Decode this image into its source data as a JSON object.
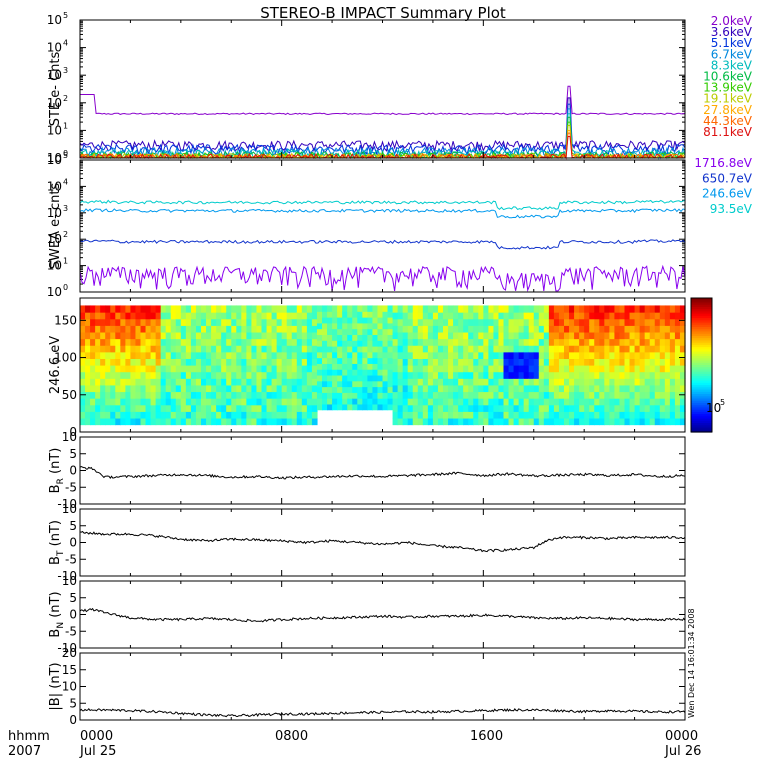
{
  "title": "STEREO-B IMPACT Summary Plot",
  "footer": {
    "hhmm_label": "hhmm",
    "year_label": "2007",
    "x_ticks": [
      "0000",
      "0800",
      "1600",
      "0000"
    ],
    "date_labels": [
      "Jul 25",
      "Jul 26"
    ],
    "stamp": "Wen Dec 14 16:01:34 2008"
  },
  "chart_data": [
    {
      "type": "line",
      "panel": "ste",
      "ylabel": "STE e- Cnts",
      "yscale": "log",
      "ylim": [
        1,
        100000
      ],
      "y_ticks": [
        "10^0",
        "10^1",
        "10^2",
        "10^3",
        "10^4",
        "10^5"
      ],
      "x_range_hours": [
        0,
        24
      ],
      "series": [
        {
          "name": "2.0keV",
          "color": "#8800cc",
          "baseline": 40,
          "spike": 400
        },
        {
          "name": "3.6keV",
          "color": "#3300bb",
          "baseline": 3.0,
          "spike": 150
        },
        {
          "name": "5.1keV",
          "color": "#0033dd",
          "baseline": 2.2,
          "spike": 90
        },
        {
          "name": "6.7keV",
          "color": "#0088dd",
          "baseline": 1.7,
          "spike": 60
        },
        {
          "name": "8.3keV",
          "color": "#00bbbb",
          "baseline": 1.4,
          "spike": 40
        },
        {
          "name": "10.6keV",
          "color": "#00bb44",
          "baseline": 1.2,
          "spike": 30
        },
        {
          "name": "13.9keV",
          "color": "#33cc00",
          "baseline": 1.1,
          "spike": 20
        },
        {
          "name": "19.1keV",
          "color": "#bbcc00",
          "baseline": 1.05,
          "spike": 15
        },
        {
          "name": "27.8keV",
          "color": "#ffaa00",
          "baseline": 1.0,
          "spike": 10
        },
        {
          "name": "44.3keV",
          "color": "#ff6600",
          "baseline": 1.0,
          "spike": 8
        },
        {
          "name": "81.1keV",
          "color": "#dd1111",
          "baseline": 1.0,
          "spike": 6
        }
      ],
      "spike_hour": 19.4
    },
    {
      "type": "line",
      "panel": "swea",
      "ylabel": "SWEA e- cnts",
      "yscale": "log",
      "ylim": [
        1,
        100000
      ],
      "y_ticks": [
        "10^0",
        "10^1",
        "10^2",
        "10^3",
        "10^4",
        "10^5"
      ],
      "series": [
        {
          "name": "1716.8eV",
          "color": "#8800ee",
          "level": 5
        },
        {
          "name": "650.7eV",
          "color": "#1133cc",
          "level": 80
        },
        {
          "name": "246.6eV",
          "color": "#0099ee",
          "level": 1200
        },
        {
          "name": "93.5eV",
          "color": "#00cccc",
          "level": 2500
        }
      ],
      "dip_range_hours": [
        16.5,
        19.0
      ]
    },
    {
      "type": "heatmap",
      "panel": "pad",
      "ylabel": "246.6 eV",
      "ylim": [
        0,
        180
      ],
      "y_ticks": [
        0,
        50,
        100,
        150
      ],
      "colorbar_label": "10^5"
    },
    {
      "type": "line",
      "panel": "br",
      "ylabel": "B",
      "ylabel_sub": "R",
      "yunit": "(nT)",
      "ylim": [
        -10,
        10
      ],
      "y_ticks": [
        -10,
        -5,
        0,
        5,
        10
      ],
      "x": [
        0,
        0.5,
        1,
        2,
        3,
        4,
        5,
        6,
        7,
        8,
        9,
        10,
        11,
        12,
        13,
        14,
        15,
        16,
        17,
        18,
        19,
        20,
        21,
        22,
        23,
        24
      ],
      "values": [
        1,
        0.5,
        -2,
        -1.8,
        -1.5,
        -1.2,
        -1.5,
        -2,
        -1.8,
        -2.2,
        -2,
        -1.8,
        -1.6,
        -1.8,
        -1.5,
        -1.2,
        -0.8,
        -1.5,
        -1,
        -1.6,
        -1.4,
        -1.2,
        -1.5,
        -1.2,
        -1.8,
        -1.5
      ]
    },
    {
      "type": "line",
      "panel": "bt",
      "ylabel": "B",
      "ylabel_sub": "T",
      "yunit": "(nT)",
      "ylim": [
        -10,
        10
      ],
      "y_ticks": [
        -10,
        -5,
        0,
        5,
        10
      ],
      "x": [
        0,
        1,
        2,
        3,
        4,
        5,
        6,
        7,
        8,
        9,
        10,
        11,
        12,
        13,
        14,
        15,
        16,
        17,
        18,
        18.5,
        19,
        20,
        21,
        22,
        23,
        24
      ],
      "values": [
        3,
        2.5,
        2.5,
        2,
        1,
        0.5,
        1,
        0.8,
        0.5,
        0,
        0.5,
        0,
        -0.5,
        0,
        -1,
        -1.5,
        -2.5,
        -2.2,
        -1.5,
        0.5,
        1.5,
        1.5,
        1.2,
        1.5,
        1.5,
        1.5
      ]
    },
    {
      "type": "line",
      "panel": "bn",
      "ylabel": "B",
      "ylabel_sub": "N",
      "yunit": "(nT)",
      "ylim": [
        -10,
        10
      ],
      "y_ticks": [
        -10,
        -5,
        0,
        5,
        10
      ],
      "x": [
        0,
        0.5,
        1,
        2,
        3,
        4,
        5,
        6,
        7,
        8,
        9,
        10,
        11,
        12,
        13,
        14,
        15,
        16,
        17,
        18,
        19,
        20,
        21,
        22,
        23,
        24
      ],
      "values": [
        1,
        1.5,
        0.5,
        -1,
        -1.5,
        -1.5,
        -1.2,
        -1.5,
        -2,
        -1.5,
        -1.2,
        -1,
        -0.8,
        -0.5,
        -0.8,
        -0.5,
        -0.5,
        -0.2,
        -0.5,
        -1,
        -1.2,
        -1,
        -1.2,
        -1.5,
        -1.5,
        -1.5
      ]
    },
    {
      "type": "line",
      "panel": "bmag",
      "ylabel": "|B|",
      "yunit": "(nT)",
      "ylim": [
        0,
        20
      ],
      "y_ticks": [
        0,
        5,
        10,
        15,
        20
      ],
      "x": [
        0,
        1,
        2,
        3,
        4,
        5,
        6,
        7,
        8,
        9,
        10,
        11,
        12,
        13,
        14,
        15,
        16,
        17,
        18,
        19,
        20,
        21,
        22,
        23,
        24
      ],
      "values": [
        3,
        3,
        2.8,
        2.5,
        2,
        1.5,
        1.2,
        1.5,
        1.8,
        1.8,
        2,
        2.2,
        2.3,
        2.5,
        2.4,
        2.6,
        2.8,
        3,
        3,
        2.8,
        2.5,
        2.8,
        2.6,
        2.4,
        2.5
      ]
    }
  ]
}
